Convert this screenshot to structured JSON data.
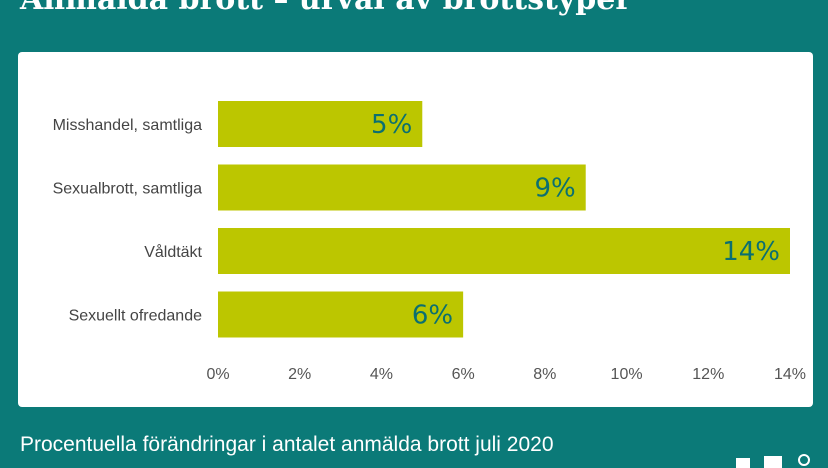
{
  "header": {
    "title": "Anmälda brott – urval av brottstyper"
  },
  "footer": {
    "subtitle": "Procentuella förändringar i antalet anmälda brott juli 2020"
  },
  "colors": {
    "background": "#0b7a78",
    "bar": "#bcc600",
    "data_label": "#0b6f70",
    "panel": "#ffffff"
  },
  "logo": {
    "icon": "logo-mark-icon"
  },
  "chart_data": {
    "type": "bar",
    "orientation": "horizontal",
    "categories": [
      "Misshandel, samtliga",
      "Sexualbrott, samtliga",
      "Våldtäkt",
      "Sexuellt ofredande"
    ],
    "values": [
      5,
      9,
      14,
      6
    ],
    "data_labels": [
      "5%",
      "9%",
      "14%",
      "6%"
    ],
    "xlim": [
      0,
      14
    ],
    "xticks": [
      0,
      2,
      4,
      6,
      8,
      10,
      12,
      14
    ],
    "xtick_labels": [
      "0%",
      "2%",
      "4%",
      "6%",
      "8%",
      "10%",
      "12%",
      "14%"
    ],
    "title": "",
    "xlabel": "",
    "ylabel": "",
    "grid": false,
    "legend": "none"
  }
}
